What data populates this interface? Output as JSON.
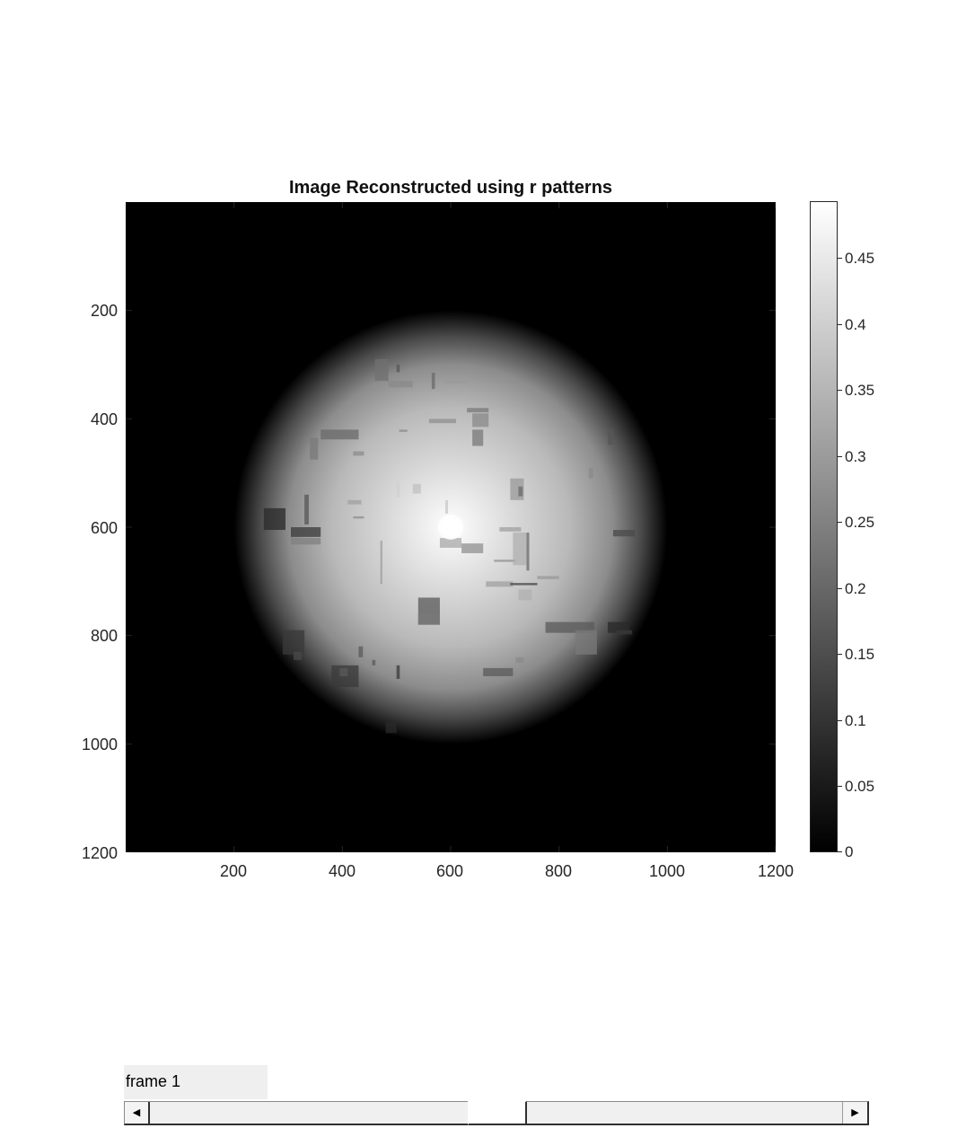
{
  "plot": {
    "title": "Image Reconstructed using r patterns",
    "x_ticks": [
      "200",
      "400",
      "600",
      "800",
      "1000",
      "1200"
    ],
    "y_ticks": [
      "200",
      "400",
      "600",
      "800",
      "1000",
      "1200"
    ],
    "colormap": "gray",
    "colorbar": {
      "ticks": [
        "0",
        "0.05",
        "0.1",
        "0.15",
        "0.2",
        "0.25",
        "0.3",
        "0.35",
        "0.4",
        "0.45"
      ],
      "range": [
        0,
        0.49
      ]
    }
  },
  "chart_data": {
    "type": "heatmap",
    "title": "Image Reconstructed using r patterns",
    "xlabel": "",
    "ylabel": "",
    "xlim": [
      1,
      1200
    ],
    "ylim": [
      1,
      1200
    ],
    "y_direction": "reversed",
    "x_tick_values": [
      200,
      400,
      600,
      800,
      1000,
      1200
    ],
    "y_tick_values": [
      200,
      400,
      600,
      800,
      1000,
      1200
    ],
    "colorbar_ticks": [
      0,
      0.05,
      0.1,
      0.15,
      0.2,
      0.25,
      0.3,
      0.35,
      0.4,
      0.45
    ],
    "colorbar_range": [
      0,
      0.49
    ],
    "description_values": {
      "peak_center": [
        600,
        600
      ],
      "peak_value": 0.49,
      "disk_radius": 400
    }
  },
  "controls": {
    "frame_label": "frame 1",
    "slider": {
      "left_arrow": "◀",
      "right_arrow": "▶"
    }
  }
}
